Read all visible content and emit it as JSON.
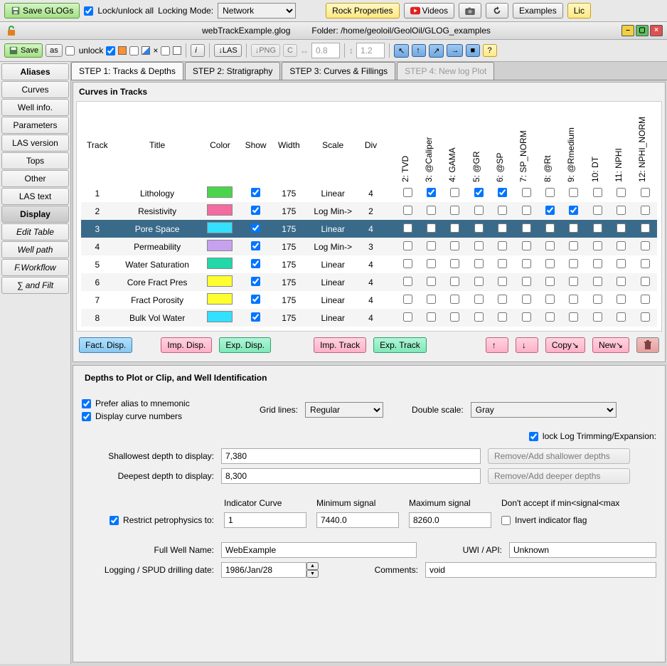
{
  "top": {
    "save_glogs": "Save GLOGs",
    "lock_unlock": "Lock/unlock all",
    "locking_mode_label": "Locking Mode:",
    "locking_mode_value": "Network",
    "rock_props": "Rock  Properties",
    "videos": "Videos",
    "examples": "Examples",
    "lic": "Lic"
  },
  "titlebar": {
    "filename": "webTrackExample.glog",
    "folder_label": "Folder:",
    "folder_path": "/home/geoloil/GeolOil/GLOG_examples"
  },
  "tb2": {
    "save": "Save",
    "as": "as",
    "unlock": "unlock",
    "las": "↓LAS",
    "png": "↓PNG",
    "c": "C",
    "w08": "0.8",
    "h12": "1.2",
    "i": "i"
  },
  "sidebar": {
    "items": [
      {
        "label": "Aliases",
        "bold": true
      },
      {
        "label": "Curves"
      },
      {
        "label": "Well info."
      },
      {
        "label": "Parameters"
      },
      {
        "label": "LAS version"
      },
      {
        "label": "Tops"
      },
      {
        "label": "Other"
      },
      {
        "label": "LAS text"
      },
      {
        "label": "Display",
        "active": true,
        "bold": true
      },
      {
        "label": "Edit Table",
        "italic": true
      },
      {
        "label": "Well path",
        "italic": true
      },
      {
        "label": "F.Workflow",
        "italic": true
      },
      {
        "label": "∑ and Filt",
        "italic": true
      }
    ]
  },
  "tabs": [
    {
      "label": "STEP 1: Tracks & Depths",
      "active": true
    },
    {
      "label": "STEP 2: Stratigraphy"
    },
    {
      "label": "STEP 3: Curves & Fillings"
    },
    {
      "label": "STEP 4: New log Plot",
      "disabled": true
    }
  ],
  "curves_panel": {
    "title": "Curves in Tracks",
    "headers": {
      "track": "Track",
      "title": "Title",
      "color": "Color",
      "show": "Show",
      "width": "Width",
      "scale": "Scale",
      "div": "Div"
    },
    "curve_cols": [
      "2: TVD",
      "3: @Caliper",
      "4: GAMA",
      "5: @GR",
      "6: @SP",
      "7: SP_NORM",
      "8: @Rt",
      "9: @Rmedium",
      "10: DT",
      "11: NPHI",
      "12: NPHI_NORM"
    ],
    "rows": [
      {
        "n": "1",
        "title": "Lithology",
        "color": "#4bd54b",
        "show": true,
        "width": "175",
        "scale": "Linear",
        "div": "4",
        "checks": [
          false,
          true,
          false,
          true,
          true,
          false,
          false,
          false,
          false,
          false,
          false
        ]
      },
      {
        "n": "2",
        "title": "Resistivity",
        "color": "#f56aa0",
        "show": true,
        "width": "175",
        "scale": "Log Min->",
        "div": "2",
        "checks": [
          false,
          false,
          false,
          false,
          false,
          false,
          true,
          true,
          false,
          false,
          false
        ]
      },
      {
        "n": "3",
        "title": "Pore Space",
        "color": "#33e0ff",
        "show": true,
        "width": "175",
        "scale": "Linear",
        "div": "4",
        "checks": [
          false,
          false,
          false,
          false,
          false,
          false,
          false,
          false,
          false,
          false,
          false
        ],
        "selected": true
      },
      {
        "n": "4",
        "title": "Permeability",
        "color": "#c8a0f0",
        "show": true,
        "width": "175",
        "scale": "Log Min->",
        "div": "3",
        "checks": [
          false,
          false,
          false,
          false,
          false,
          false,
          false,
          false,
          false,
          false,
          false
        ]
      },
      {
        "n": "5",
        "title": "Water Saturation",
        "color": "#20d8a8",
        "show": true,
        "width": "175",
        "scale": "Linear",
        "div": "4",
        "checks": [
          false,
          false,
          false,
          false,
          false,
          false,
          false,
          false,
          false,
          false,
          false
        ]
      },
      {
        "n": "6",
        "title": "Core Fract Pres",
        "color": "#ffff30",
        "show": true,
        "width": "175",
        "scale": "Linear",
        "div": "4",
        "checks": [
          false,
          false,
          false,
          false,
          false,
          false,
          false,
          false,
          false,
          false,
          false
        ]
      },
      {
        "n": "7",
        "title": "Fract Porosity",
        "color": "#ffff30",
        "show": true,
        "width": "175",
        "scale": "Linear",
        "div": "4",
        "checks": [
          false,
          false,
          false,
          false,
          false,
          false,
          false,
          false,
          false,
          false,
          false
        ]
      },
      {
        "n": "8",
        "title": "Bulk Vol Water",
        "color": "#33e0ff",
        "show": true,
        "width": "175",
        "scale": "Linear",
        "div": "4",
        "checks": [
          false,
          false,
          false,
          false,
          false,
          false,
          false,
          false,
          false,
          false,
          false
        ]
      }
    ],
    "actions": {
      "fact_disp": "Fact. Disp.",
      "imp_disp": "Imp. Disp.",
      "exp_disp": "Exp. Disp.",
      "imp_track": "Imp. Track",
      "exp_track": "Exp. Track",
      "up": "↑",
      "down": "↓",
      "copy": "Copy↘",
      "new": "New↘"
    }
  },
  "depths": {
    "title": "Depths to Plot or Clip, and Well Identification",
    "prefer_alias": "Prefer alias to mnemonic",
    "display_curve_nums": "Display curve numbers",
    "grid_lines_label": "Grid lines:",
    "grid_lines_value": "Regular",
    "double_scale_label": "Double scale:",
    "double_scale_value": "Gray",
    "lock_trim": "lock Log Trimming/Expansion:",
    "shallowest_label": "Shallowest depth to display:",
    "shallowest_value": "7,380",
    "deepest_label": "Deepest depth to display:",
    "deepest_value": "8,300",
    "remove_shallow": "Remove/Add shallower depths",
    "remove_deep": "Remove/Add deeper depths",
    "restrict_label": "Restrict petrophysics to:",
    "indicator_label": "Indicator Curve",
    "indicator_value": "1",
    "min_signal_label": "Minimum signal",
    "min_signal_value": "7440.0",
    "max_signal_label": "Maximum signal",
    "max_signal_value": "8260.0",
    "dont_accept": "Don't accept if min<signal<max",
    "invert_flag": "Invert indicator flag",
    "well_name_label": "Full Well Name:",
    "well_name_value": "WebExample",
    "uwi_label": "UWI / API:",
    "uwi_value": "Unknown",
    "date_label": "Logging / SPUD drilling date:",
    "date_value": "1986/Jan/28",
    "comments_label": "Comments:",
    "comments_value": "void"
  }
}
